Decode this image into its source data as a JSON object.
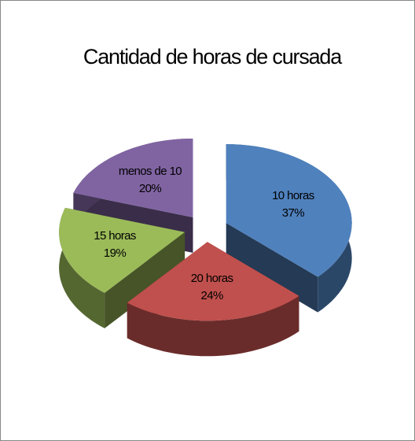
{
  "chart_data": {
    "type": "pie",
    "title": "Cantidad de horas de cursada",
    "categories": [
      "10 horas",
      "20 horas",
      "15 horas",
      "menos de 10"
    ],
    "values": [
      37,
      24,
      19,
      20
    ],
    "value_labels": [
      "37%",
      "24%",
      "19%",
      "20%"
    ],
    "colors": [
      "#4f81bd",
      "#c0504d",
      "#9bbb59",
      "#8064a2"
    ]
  }
}
